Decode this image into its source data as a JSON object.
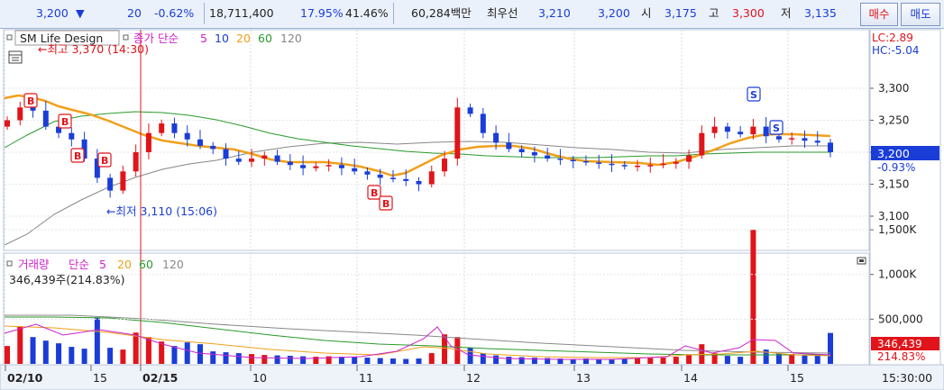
{
  "quote_bar": {
    "price": "3,200",
    "price_arrow": "▼",
    "change": "20",
    "change_pct": "-0.62%",
    "volume": "18,711,400",
    "turnover_pct": "17.95%",
    "ratio_pct": "41.46%",
    "trade_value": "60,284백만",
    "best_label": "최우선",
    "best_ask": "3,210",
    "best_bid": "3,200",
    "open_label": "시",
    "open": "3,175",
    "high_label": "고",
    "high": "3,300",
    "low_label": "저",
    "low": "3,135",
    "buy_button": "매수",
    "sell_button": "매도"
  },
  "price_panel": {
    "name": "SM Life Design",
    "ma_label": "종가 단순",
    "ma_periods": [
      "5",
      "10",
      "20",
      "60",
      "120"
    ],
    "high_marker": "←최고 3,370 (14:30)",
    "low_marker": "←최저 3,110 (15:06)",
    "lc_text": "LC:2.89",
    "hc_text": "HC:-5.04",
    "current_price_badge": "3,200",
    "current_change_text": "-0.93%",
    "price_axis": [
      "3,300",
      "3,250",
      "3,200",
      "3,150",
      "3,100"
    ],
    "buy_signal": "B",
    "sell_signal": "S"
  },
  "volume_panel": {
    "label": "거래량",
    "ma_label": "단순",
    "ma_periods": [
      "5",
      "20",
      "60",
      "120"
    ],
    "info": "346,439주(214.83%)",
    "volume_axis": [
      "1,500K",
      "1,000K",
      "500,000"
    ],
    "current_volume_badge": "346,439",
    "current_ratio_text": "214.83%"
  },
  "time_axis": {
    "labels": [
      "02/10",
      "15",
      "02/15",
      "10",
      "11",
      "12",
      "13",
      "14",
      "15"
    ],
    "clock": "15:30:00"
  },
  "colors": {
    "up": "#e0141a",
    "down": "#1a3dd8",
    "ma5": "#1a3dd8",
    "ma10": "#e0141a",
    "ma20": "#f0a01c",
    "ma60": "#2a9a2a",
    "ma120": "#888888",
    "vol_ma5": "#cc22cc"
  },
  "chart_data": {
    "type": "candlestick",
    "price_close_approx": [
      3250,
      3270,
      3265,
      3240,
      3230,
      3220,
      3190,
      3160,
      3140,
      3170,
      3200,
      3230,
      3245,
      3230,
      3220,
      3210,
      3205,
      3190,
      3185,
      3190,
      3195,
      3185,
      3180,
      3175,
      3178,
      3180,
      3175,
      3170,
      3165,
      3160,
      3158,
      3155,
      3150,
      3170,
      3190,
      3270,
      3260,
      3230,
      3215,
      3205,
      3200,
      3195,
      3190,
      3188,
      3186,
      3184,
      3182,
      3180,
      3178,
      3179,
      3180,
      3182,
      3185,
      3195,
      3230,
      3240,
      3232,
      3228,
      3240,
      3225,
      3220,
      3222,
      3218,
      3215,
      3200
    ],
    "volume_k_approx": [
      200,
      420,
      300,
      260,
      230,
      190,
      170,
      520,
      180,
      160,
      350,
      300,
      250,
      200,
      240,
      220,
      140,
      130,
      120,
      110,
      100,
      95,
      90,
      85,
      80,
      85,
      80,
      75,
      70,
      65,
      60,
      55,
      60,
      120,
      330,
      300,
      180,
      120,
      95,
      80,
      75,
      70,
      65,
      60,
      55,
      60,
      55,
      50,
      55,
      60,
      65,
      70,
      80,
      100,
      220,
      120,
      90,
      80,
      1500,
      160,
      120,
      110,
      95,
      100,
      346
    ]
  }
}
